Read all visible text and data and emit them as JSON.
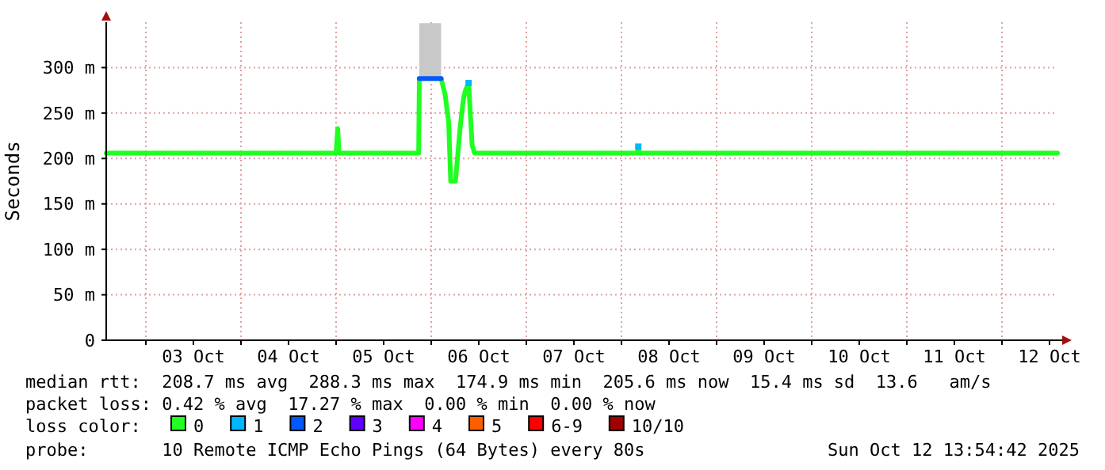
{
  "chart_data": {
    "type": "line",
    "ylabel": "Seconds",
    "legend_title": "loss color:",
    "legend": "bottom",
    "grid": true,
    "line_style": "solid",
    "xlim": [
      "2025-10-02T14:00",
      "2025-10-12T14:00"
    ],
    "xticks": [
      {
        "value": "2025-10-03T00:00",
        "label": null
      },
      {
        "value": "2025-10-03T12:00",
        "label": "03 Oct"
      },
      {
        "value": "2025-10-04T00:00",
        "label": null
      },
      {
        "value": "2025-10-04T12:00",
        "label": "04 Oct"
      },
      {
        "value": "2025-10-05T00:00",
        "label": null
      },
      {
        "value": "2025-10-05T12:00",
        "label": "05 Oct"
      },
      {
        "value": "2025-10-06T00:00",
        "label": null
      },
      {
        "value": "2025-10-06T12:00",
        "label": "06 Oct"
      },
      {
        "value": "2025-10-07T00:00",
        "label": null
      },
      {
        "value": "2025-10-07T12:00",
        "label": "07 Oct"
      },
      {
        "value": "2025-10-08T00:00",
        "label": null
      },
      {
        "value": "2025-10-08T12:00",
        "label": "08 Oct"
      },
      {
        "value": "2025-10-09T00:00",
        "label": null
      },
      {
        "value": "2025-10-09T12:00",
        "label": "09 Oct"
      },
      {
        "value": "2025-10-10T00:00",
        "label": null
      },
      {
        "value": "2025-10-10T12:00",
        "label": "10 Oct"
      },
      {
        "value": "2025-10-11T00:00",
        "label": null
      },
      {
        "value": "2025-10-11T12:00",
        "label": "11 Oct"
      },
      {
        "value": "2025-10-12T00:00",
        "label": null
      },
      {
        "value": "2025-10-12T12:00",
        "label": "12 Oct"
      }
    ],
    "ylim": [
      0,
      350
    ],
    "yticks": [
      0,
      {
        "value": 50,
        "label": "50 m"
      },
      {
        "value": 100,
        "label": "100 m"
      },
      {
        "value": 150,
        "label": "150 m"
      },
      {
        "value": 200,
        "label": "200 m"
      },
      {
        "value": 250,
        "label": "250 m"
      },
      {
        "value": 300,
        "label": "300 m"
      }
    ],
    "series": [
      {
        "name": "0",
        "color": "#20ff20",
        "x": [
          "2025-10-02T14:00",
          "2025-10-05T00:00",
          "2025-10-05T00:24",
          "2025-10-05T00:45",
          "2025-10-05T20:50",
          "2025-10-05T21:00",
          "2025-10-06T02:30",
          "2025-10-06T03:31",
          "2025-10-06T04:24",
          "2025-10-06T04:55",
          "2025-10-06T06:07",
          "2025-10-06T07:19",
          "2025-10-06T08:07",
          "2025-10-06T08:38",
          "2025-10-06T09:26",
          "2025-10-06T10:19",
          "2025-10-06T10:55",
          "2025-10-08T04:00",
          "2025-10-08T04:15",
          "2025-10-08T04:30",
          "2025-10-12T14:00"
        ],
        "values": [
          206,
          206,
          233,
          206,
          206,
          288,
          288,
          270,
          240,
          175,
          175,
          235,
          265,
          275,
          283,
          215,
          206,
          206,
          213,
          206,
          206
        ]
      },
      {
        "name": "1",
        "type": "scatter",
        "marker": "square",
        "color": "#00b8ff",
        "x": [
          "2025-10-06T09:26",
          "2025-10-08T04:15"
        ],
        "values": [
          283,
          213
        ]
      },
      {
        "name": "2",
        "color": "#0059ff",
        "x": [
          "2025-10-05T21:00",
          "2025-10-06T02:30"
        ],
        "values": [
          288,
          288
        ],
        "lower": [
          288,
          288
        ],
        "upper": [
          349,
          349
        ]
      },
      {
        "name": "3",
        "color": "#5e00ff"
      },
      {
        "name": "4",
        "color": "#ff00ff"
      },
      {
        "name": "5",
        "color": "#ff5e00"
      },
      {
        "name": "6-9",
        "color": "#ff0000"
      },
      {
        "name": "10/10",
        "color": "#a10000"
      }
    ],
    "annotations": [
      "median rtt:  208.7 ms avg  288.3 ms max  174.9 ms min  205.6 ms now  15.4 ms sd  13.6   am/s",
      "packet loss: 0.42 % avg  17.27 % max  0.00 % min  0.00 % now",
      "probe:       10 Remote ICMP Echo Pings (64 Bytes) every 80s",
      "Sun Oct 12 13:54:42 2025"
    ]
  }
}
